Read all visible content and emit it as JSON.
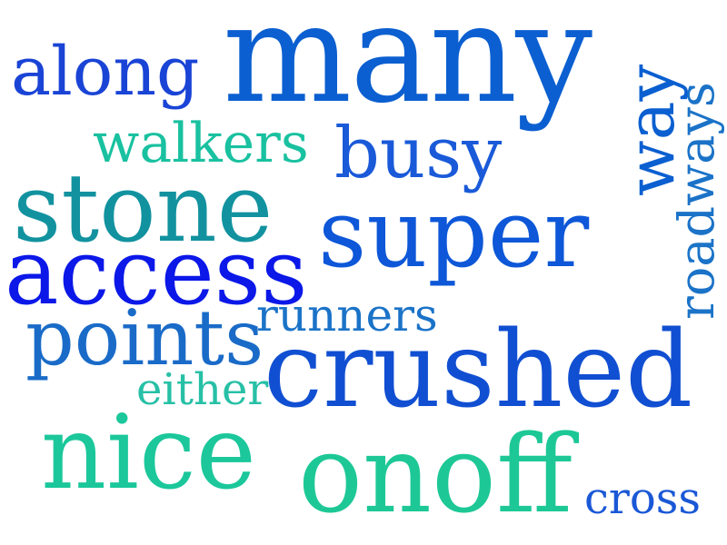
{
  "word_cloud": {
    "words": [
      {
        "id": "many",
        "text": "many",
        "color": "#0b5fd0"
      },
      {
        "id": "along",
        "text": "along",
        "color": "#1a44d6"
      },
      {
        "id": "walkers",
        "text": "walkers",
        "color": "#19c1a0"
      },
      {
        "id": "busy",
        "text": "busy",
        "color": "#1a5ad9"
      },
      {
        "id": "stone",
        "text": "stone",
        "color": "#12929f"
      },
      {
        "id": "super",
        "text": "super",
        "color": "#0d57d8"
      },
      {
        "id": "access",
        "text": "access",
        "color": "#0b18e8"
      },
      {
        "id": "runners",
        "text": "runners",
        "color": "#1b73c8"
      },
      {
        "id": "points",
        "text": "points",
        "color": "#1a6bc8"
      },
      {
        "id": "either",
        "text": "either",
        "color": "#27c0a6"
      },
      {
        "id": "crushed",
        "text": "crushed",
        "color": "#114fd2"
      },
      {
        "id": "nice",
        "text": "nice",
        "color": "#1bc79b"
      },
      {
        "id": "onoff",
        "text": "onoff",
        "color": "#1dc896"
      },
      {
        "id": "cross",
        "text": "cross",
        "color": "#1a58d6"
      },
      {
        "id": "way",
        "text": "way",
        "color": "#0b5fd0"
      },
      {
        "id": "roadways",
        "text": "roadways",
        "color": "#1b73c8"
      }
    ]
  }
}
